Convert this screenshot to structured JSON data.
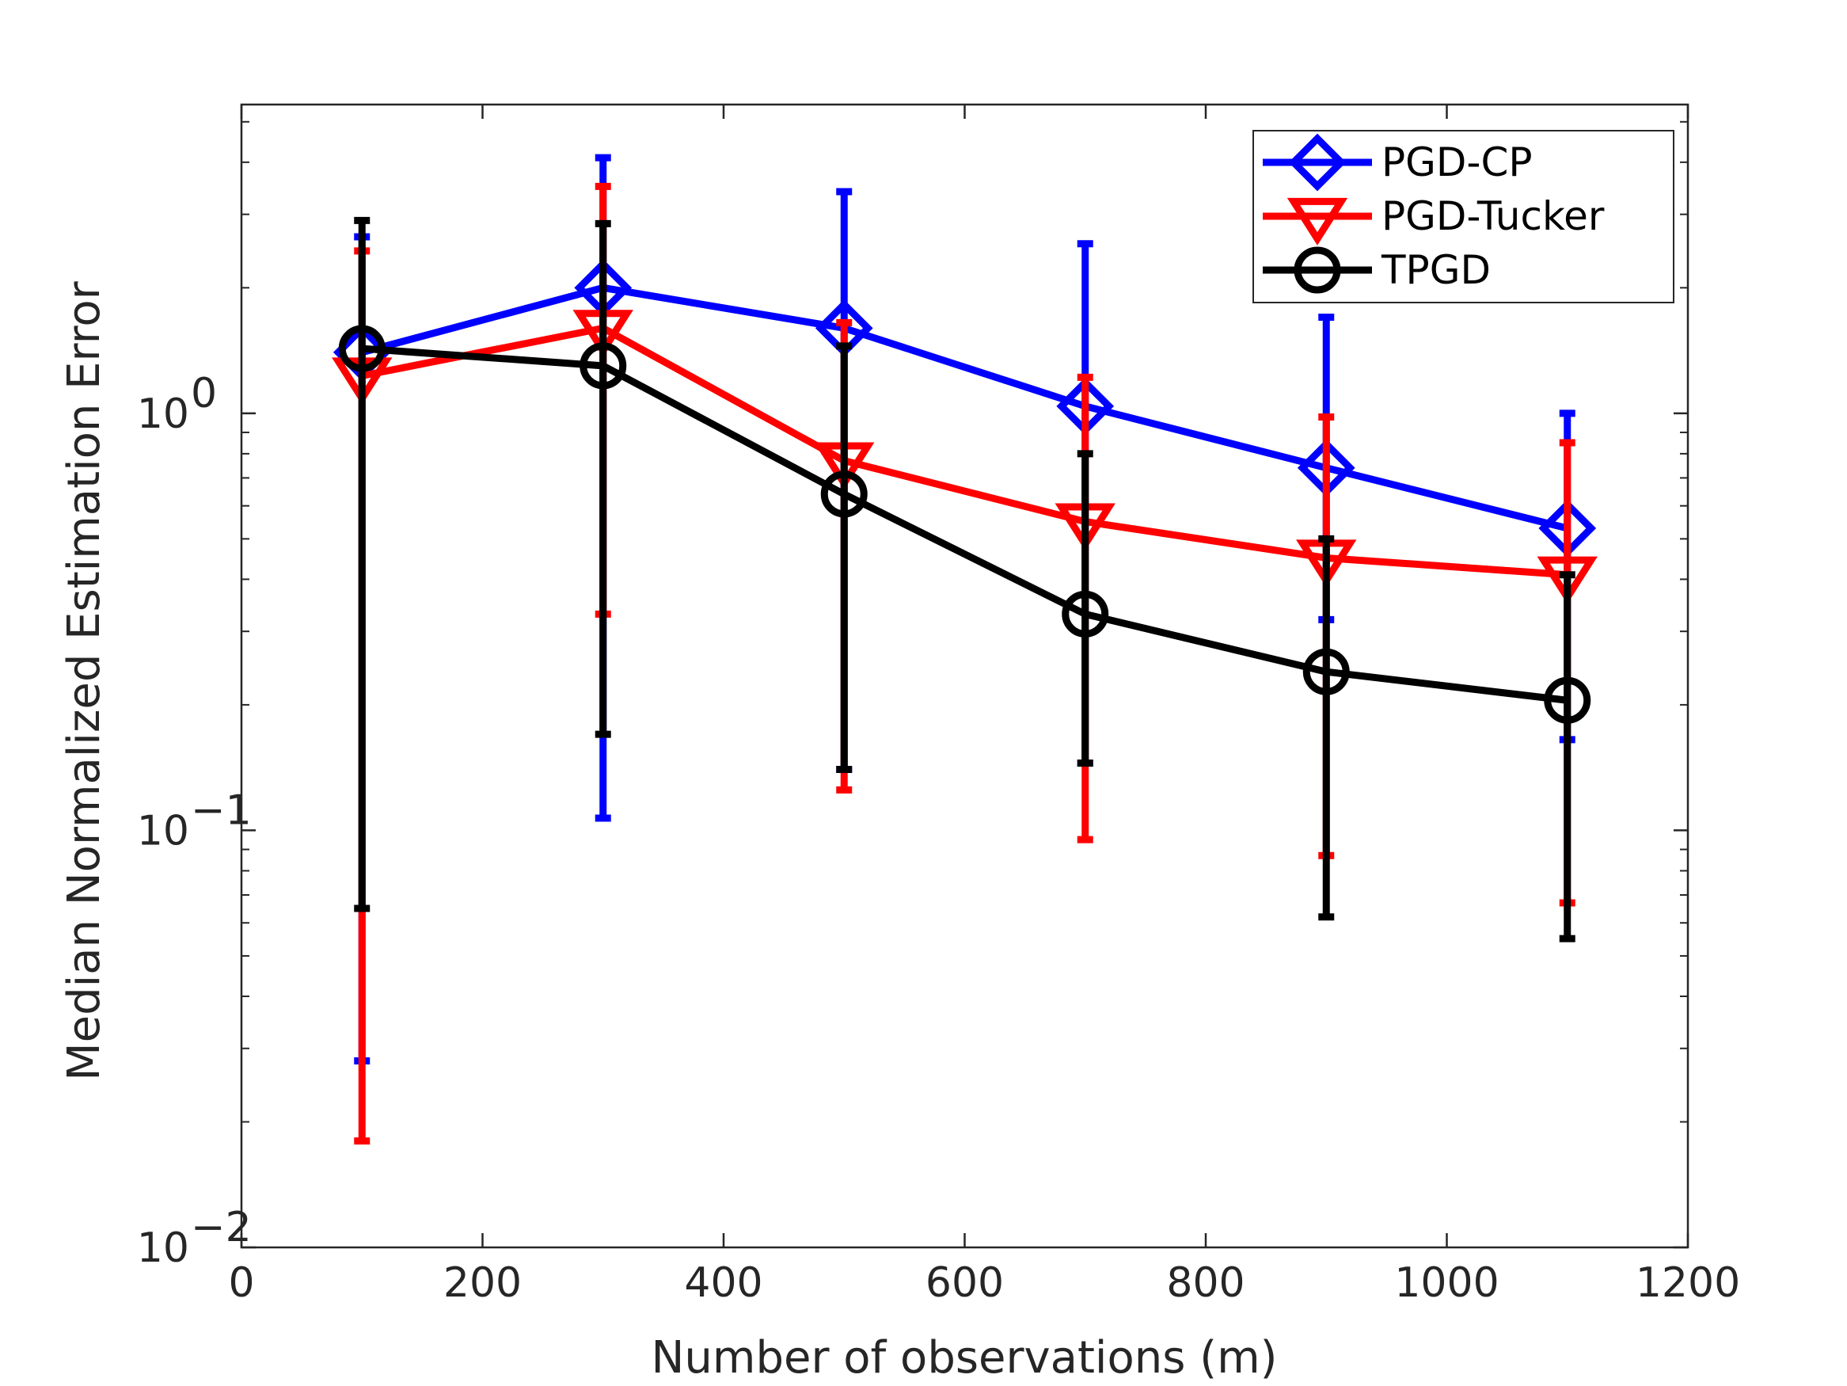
{
  "chart_data": {
    "type": "line",
    "title": "",
    "xlabel": "Number of observations (m)",
    "ylabel": "Median Normalized Estimation Error",
    "xlim": [
      0,
      1200
    ],
    "ylim": [
      0.01,
      5.5
    ],
    "yscale": "log",
    "grid": false,
    "legend_position": "top-right",
    "x": [
      100,
      300,
      500,
      700,
      900,
      1100
    ],
    "x_ticks": [
      {
        "value": 0,
        "label": "0"
      },
      {
        "value": 200,
        "label": "200"
      },
      {
        "value": 400,
        "label": "400"
      },
      {
        "value": 600,
        "label": "600"
      },
      {
        "value": 800,
        "label": "800"
      },
      {
        "value": 1000,
        "label": "1000"
      },
      {
        "value": 1200,
        "label": "1200"
      }
    ],
    "y_ticks": [
      {
        "value": 0.01,
        "base": "10",
        "exp": "−2"
      },
      {
        "value": 0.1,
        "base": "10",
        "exp": "−1"
      },
      {
        "value": 1,
        "base": "10",
        "exp": "0"
      }
    ],
    "series": [
      {
        "name": "PGD-CP",
        "color": "#0000ff",
        "marker": "diamond",
        "values": [
          1.4,
          2.0,
          1.6,
          1.04,
          0.74,
          0.53
        ],
        "err_low": [
          0.028,
          0.107,
          0.14,
          0.145,
          0.32,
          0.165
        ],
        "err_high": [
          2.65,
          4.1,
          3.4,
          2.55,
          1.7,
          1.0
        ]
      },
      {
        "name": "PGD-Tucker",
        "color": "#ff0000",
        "marker": "triangle-down",
        "values": [
          1.23,
          1.6,
          0.77,
          0.55,
          0.45,
          0.41
        ],
        "err_low": [
          0.018,
          0.33,
          0.125,
          0.095,
          0.087,
          0.067
        ],
        "err_high": [
          2.45,
          3.5,
          1.65,
          1.22,
          0.98,
          0.85
        ]
      },
      {
        "name": "TPGD",
        "color": "#000000",
        "marker": "circle",
        "values": [
          1.43,
          1.3,
          0.64,
          0.33,
          0.24,
          0.205
        ],
        "err_low": [
          0.065,
          0.17,
          0.14,
          0.145,
          0.062,
          0.055
        ],
        "err_high": [
          2.9,
          2.85,
          1.45,
          0.8,
          0.5,
          0.41
        ]
      }
    ]
  }
}
